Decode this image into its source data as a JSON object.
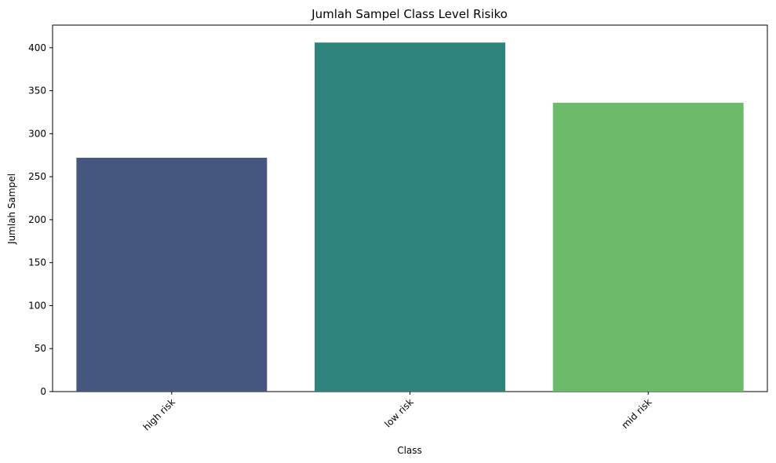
{
  "chart_data": {
    "type": "bar",
    "title": "Jumlah Sampel Class Level Risiko",
    "xlabel": "Class",
    "ylabel": "Jumlah Sampel",
    "categories": [
      "high risk",
      "low risk",
      "mid risk"
    ],
    "values": [
      272,
      406,
      336
    ],
    "colors": [
      "#46577f",
      "#2e837c",
      "#6bbb6b"
    ],
    "ylim": [
      0,
      426.3
    ],
    "yticks": [
      0,
      50,
      100,
      150,
      200,
      250,
      300,
      350,
      400
    ],
    "x_tick_rotation_deg": 45,
    "grid": false,
    "legend": false
  }
}
